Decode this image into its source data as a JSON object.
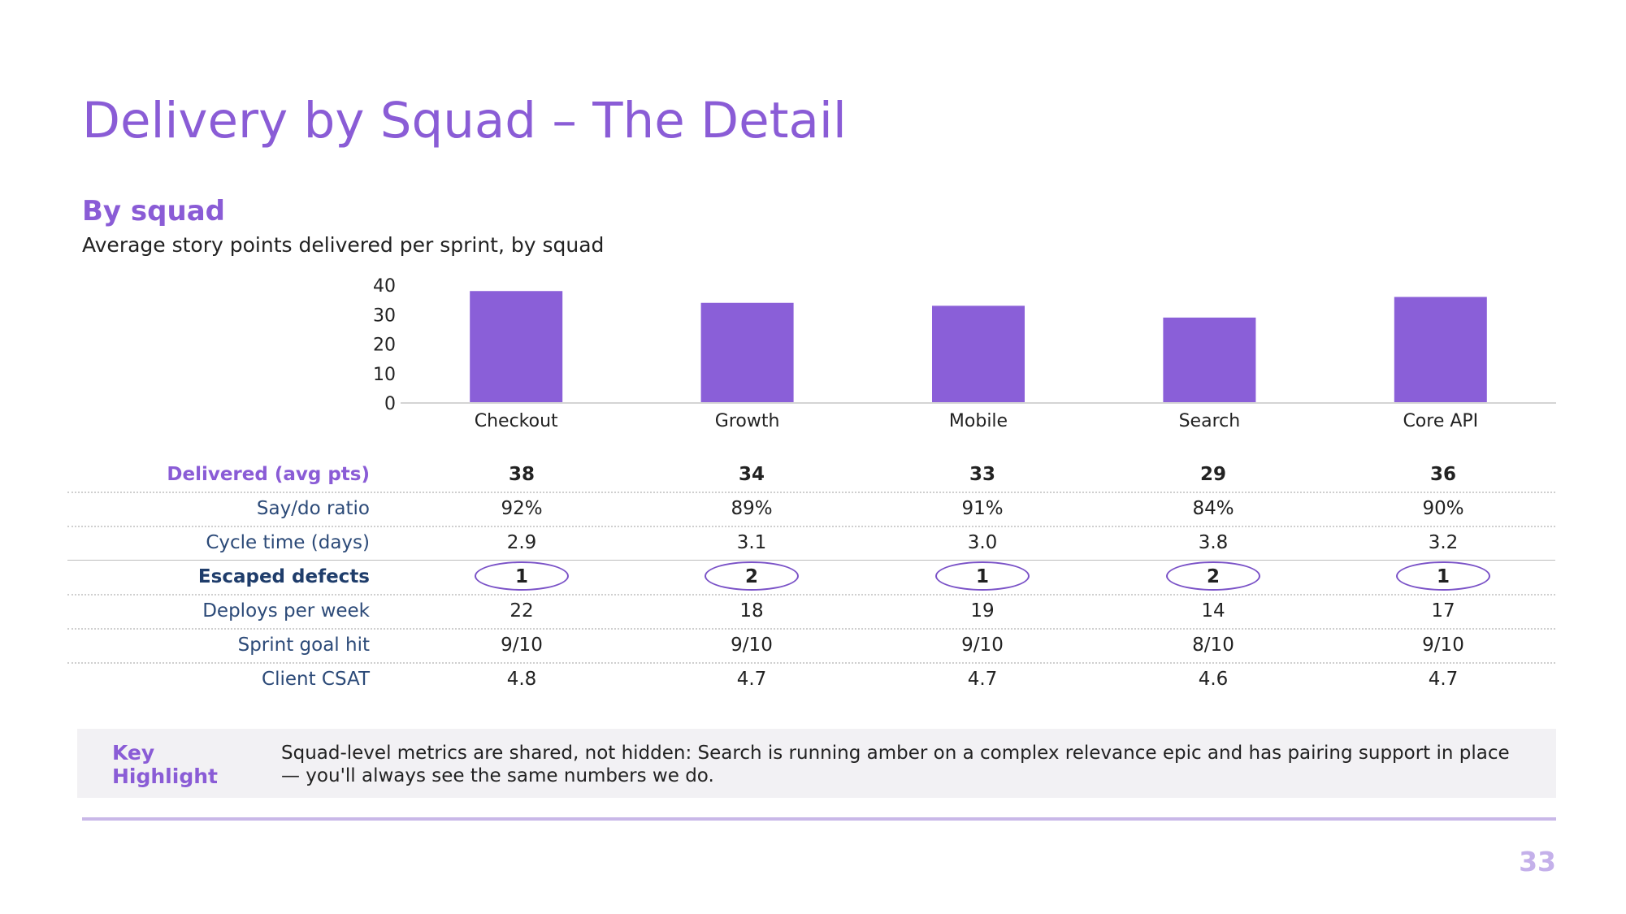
{
  "slide": {
    "title": "Delivery by Squad – The Detail",
    "page_number": "33"
  },
  "section": {
    "heading": "By squad",
    "chart_subtitle": "Average story points delivered per sprint, by squad"
  },
  "colors": {
    "accent": "#8a5cd6",
    "bar": "#8a5fd8",
    "navy_label": "#2c4a78",
    "circle": "#7a52c7"
  },
  "chart_data": {
    "type": "bar",
    "title": "Average story points delivered per sprint, by squad",
    "categories": [
      "Checkout",
      "Growth",
      "Mobile",
      "Search",
      "Core API"
    ],
    "values": [
      38,
      34,
      33,
      29,
      36
    ],
    "yticks": [
      0,
      10,
      20,
      30,
      40
    ],
    "ylim": [
      0,
      40
    ],
    "xlabel": "",
    "ylabel": "",
    "grid": false,
    "legend": "none"
  },
  "table": {
    "rows": [
      {
        "label": "Delivered (avg pts)",
        "values": [
          "38",
          "34",
          "33",
          "29",
          "36"
        ]
      },
      {
        "label": "Say/do ratio",
        "values": [
          "92%",
          "89%",
          "91%",
          "84%",
          "90%"
        ]
      },
      {
        "label": "Cycle time (days)",
        "values": [
          "2.9",
          "3.1",
          "3.0",
          "3.8",
          "3.2"
        ]
      },
      {
        "label": "Escaped defects",
        "values": [
          "1",
          "2",
          "1",
          "2",
          "1"
        ]
      },
      {
        "label": "Deploys per week",
        "values": [
          "22",
          "18",
          "19",
          "14",
          "17"
        ]
      },
      {
        "label": "Sprint goal hit",
        "values": [
          "9/10",
          "9/10",
          "9/10",
          "8/10",
          "9/10"
        ]
      },
      {
        "label": "Client CSAT",
        "values": [
          "4.8",
          "4.7",
          "4.7",
          "4.6",
          "4.7"
        ]
      }
    ]
  },
  "highlight": {
    "label": "Key Highlight",
    "text": "Squad-level metrics are shared, not hidden: Search is running amber on a complex relevance epic and has pairing support in place — you'll always see the same numbers we do."
  }
}
